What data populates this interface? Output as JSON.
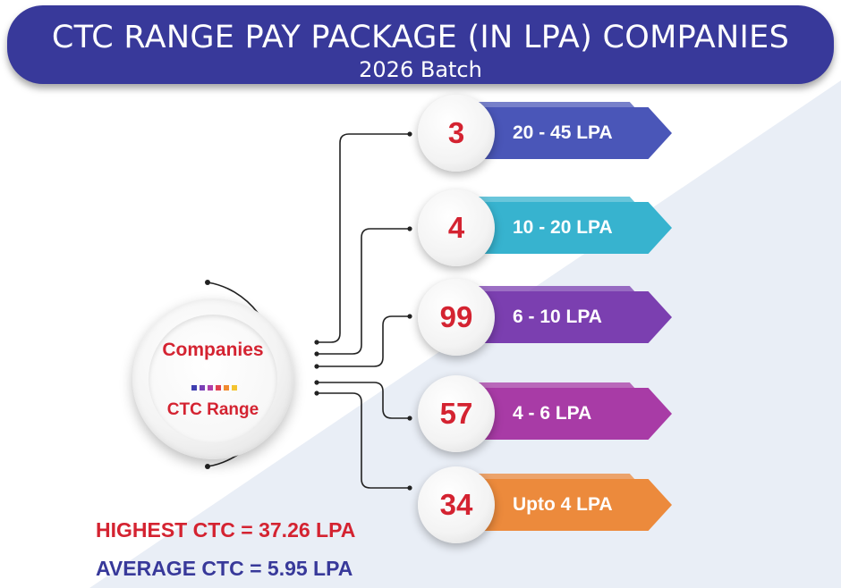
{
  "header": {
    "title": "CTC RANGE PAY PACKAGE (IN LPA) COMPANIES",
    "subtitle": "2026 Batch"
  },
  "hub": {
    "label_top": "Companies",
    "label_bottom": "CTC Range",
    "dot_colors": [
      "#3f3fb0",
      "#7a3fb5",
      "#b03fa8",
      "#e04050",
      "#f08a30",
      "#f4c430"
    ]
  },
  "ranges": [
    {
      "count": "3",
      "label": "20 - 45 LPA",
      "color": "#4a56b8"
    },
    {
      "count": "4",
      "label": "10 - 20 LPA",
      "color": "#37b3cf"
    },
    {
      "count": "99",
      "label": "6 - 10 LPA",
      "color": "#7b3fb0"
    },
    {
      "count": "57",
      "label": "4 - 6 LPA",
      "color": "#a83ba6"
    },
    {
      "count": "34",
      "label": "Upto 4 LPA",
      "color": "#ec8a3c"
    }
  ],
  "stats": {
    "highest": "HIGHEST CTC =  37.26 LPA",
    "average": "AVERAGE CTC = 5.95 LPA",
    "highest_color": "#d42331",
    "average_color": "#38399a"
  },
  "colors": {
    "banner": "#38399a",
    "background_tint": "#e8edf5"
  }
}
